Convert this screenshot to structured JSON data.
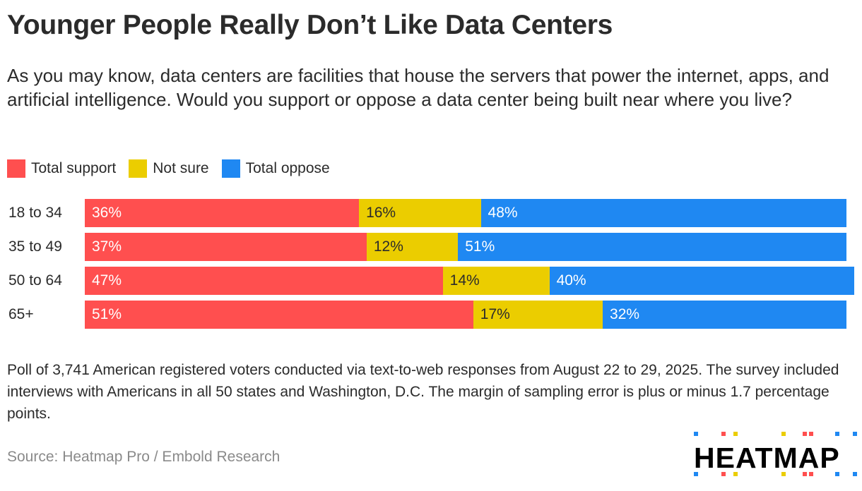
{
  "chart_data": {
    "type": "bar",
    "orientation": "horizontal-stacked",
    "title": "Younger People Really Don’t Like Data Centers",
    "subtitle": "As you may know, data centers are facilities that house the servers that power the internet, apps, and artificial intelligence. Would you support or oppose a data center being built near where you live?",
    "categories": [
      "18 to 34",
      "35 to 49",
      "50 to 64",
      "65+"
    ],
    "series": [
      {
        "name": "Total support",
        "color": "#ff4f4f",
        "text_color": "#ffffff",
        "values": [
          36,
          37,
          47,
          51
        ]
      },
      {
        "name": "Not sure",
        "color": "#ebcd00",
        "text_color": "#2b2b2b",
        "values": [
          16,
          12,
          14,
          17
        ]
      },
      {
        "name": "Total oppose",
        "color": "#1f88f2",
        "text_color": "#ffffff",
        "values": [
          48,
          51,
          40,
          32
        ]
      }
    ],
    "value_suffix": "%",
    "legend_position": "top-left"
  },
  "note": "Poll of 3,741 American registered voters conducted via text-to-web responses from August 22 to 29, 2025. The survey included interviews with Americans in all 50 states and Washington, D.C. The margin of sampling error is plus or minus 1.7 percentage points.",
  "source": "Source: Heatmap Pro / Embold Research",
  "logo": "HEATMAP"
}
